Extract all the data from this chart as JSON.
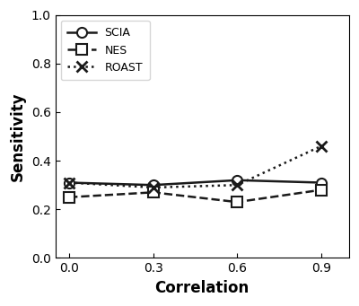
{
  "x": [
    0.0,
    0.3,
    0.6,
    0.9
  ],
  "scia": [
    0.31,
    0.3,
    0.32,
    0.31
  ],
  "nes": [
    0.25,
    0.27,
    0.23,
    0.28
  ],
  "roast": [
    0.31,
    0.29,
    0.3,
    0.46
  ],
  "xlabel": "Correlation",
  "ylabel": "Sensitivity",
  "ylim": [
    0.0,
    1.0
  ],
  "xlim": [
    -0.05,
    1.0
  ],
  "xticks": [
    0.0,
    0.3,
    0.6,
    0.9
  ],
  "yticks": [
    0.0,
    0.2,
    0.4,
    0.6,
    0.8,
    1.0
  ],
  "legend_labels": [
    "SCIA",
    "NES",
    "ROAST"
  ],
  "line_color": "#1a1a1a",
  "background_color": "#ffffff",
  "marker_size": 8,
  "linewidth": 1.8
}
